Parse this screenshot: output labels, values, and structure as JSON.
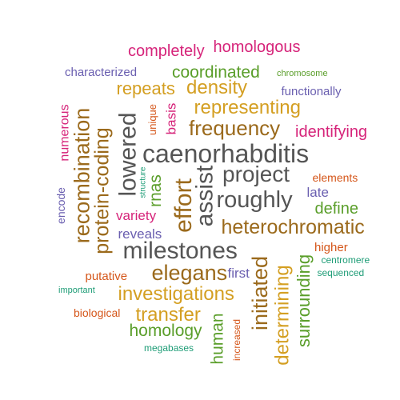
{
  "colors": {
    "magenta": "#d6247a",
    "purple": "#6a5fb0",
    "green": "#5a9e2a",
    "mustard": "#d49f22",
    "brown": "#9b6a1c",
    "gray": "#555555",
    "orange": "#d5571b",
    "teal": "#1f9d77"
  },
  "words": [
    {
      "text": "completely"
    },
    {
      "text": "homologous"
    },
    {
      "text": "characterized"
    },
    {
      "text": "coordinated"
    },
    {
      "text": "chromosome"
    },
    {
      "text": "repeats"
    },
    {
      "text": "density"
    },
    {
      "text": "functionally"
    },
    {
      "text": "representing"
    },
    {
      "text": "numerous"
    },
    {
      "text": "recombination"
    },
    {
      "text": "protein-coding"
    },
    {
      "text": "lowered"
    },
    {
      "text": "unique"
    },
    {
      "text": "basis"
    },
    {
      "text": "frequency"
    },
    {
      "text": "identifying"
    },
    {
      "text": "caenorhabditis"
    },
    {
      "text": "effort"
    },
    {
      "text": "assist"
    },
    {
      "text": "project"
    },
    {
      "text": "structure"
    },
    {
      "text": "rnas"
    },
    {
      "text": "elements"
    },
    {
      "text": "encode"
    },
    {
      "text": "roughly"
    },
    {
      "text": "late"
    },
    {
      "text": "define"
    },
    {
      "text": "variety"
    },
    {
      "text": "heterochromatic"
    },
    {
      "text": "reveals"
    },
    {
      "text": "milestones"
    },
    {
      "text": "higher"
    },
    {
      "text": "putative"
    },
    {
      "text": "elegans"
    },
    {
      "text": "first"
    },
    {
      "text": "centromere"
    },
    {
      "text": "sequenced"
    },
    {
      "text": "important"
    },
    {
      "text": "investigations"
    },
    {
      "text": "initiated"
    },
    {
      "text": "determining"
    },
    {
      "text": "surrounding"
    },
    {
      "text": "biological"
    },
    {
      "text": "transfer"
    },
    {
      "text": "homology"
    },
    {
      "text": "increased"
    },
    {
      "text": "human"
    },
    {
      "text": "megabases"
    }
  ]
}
